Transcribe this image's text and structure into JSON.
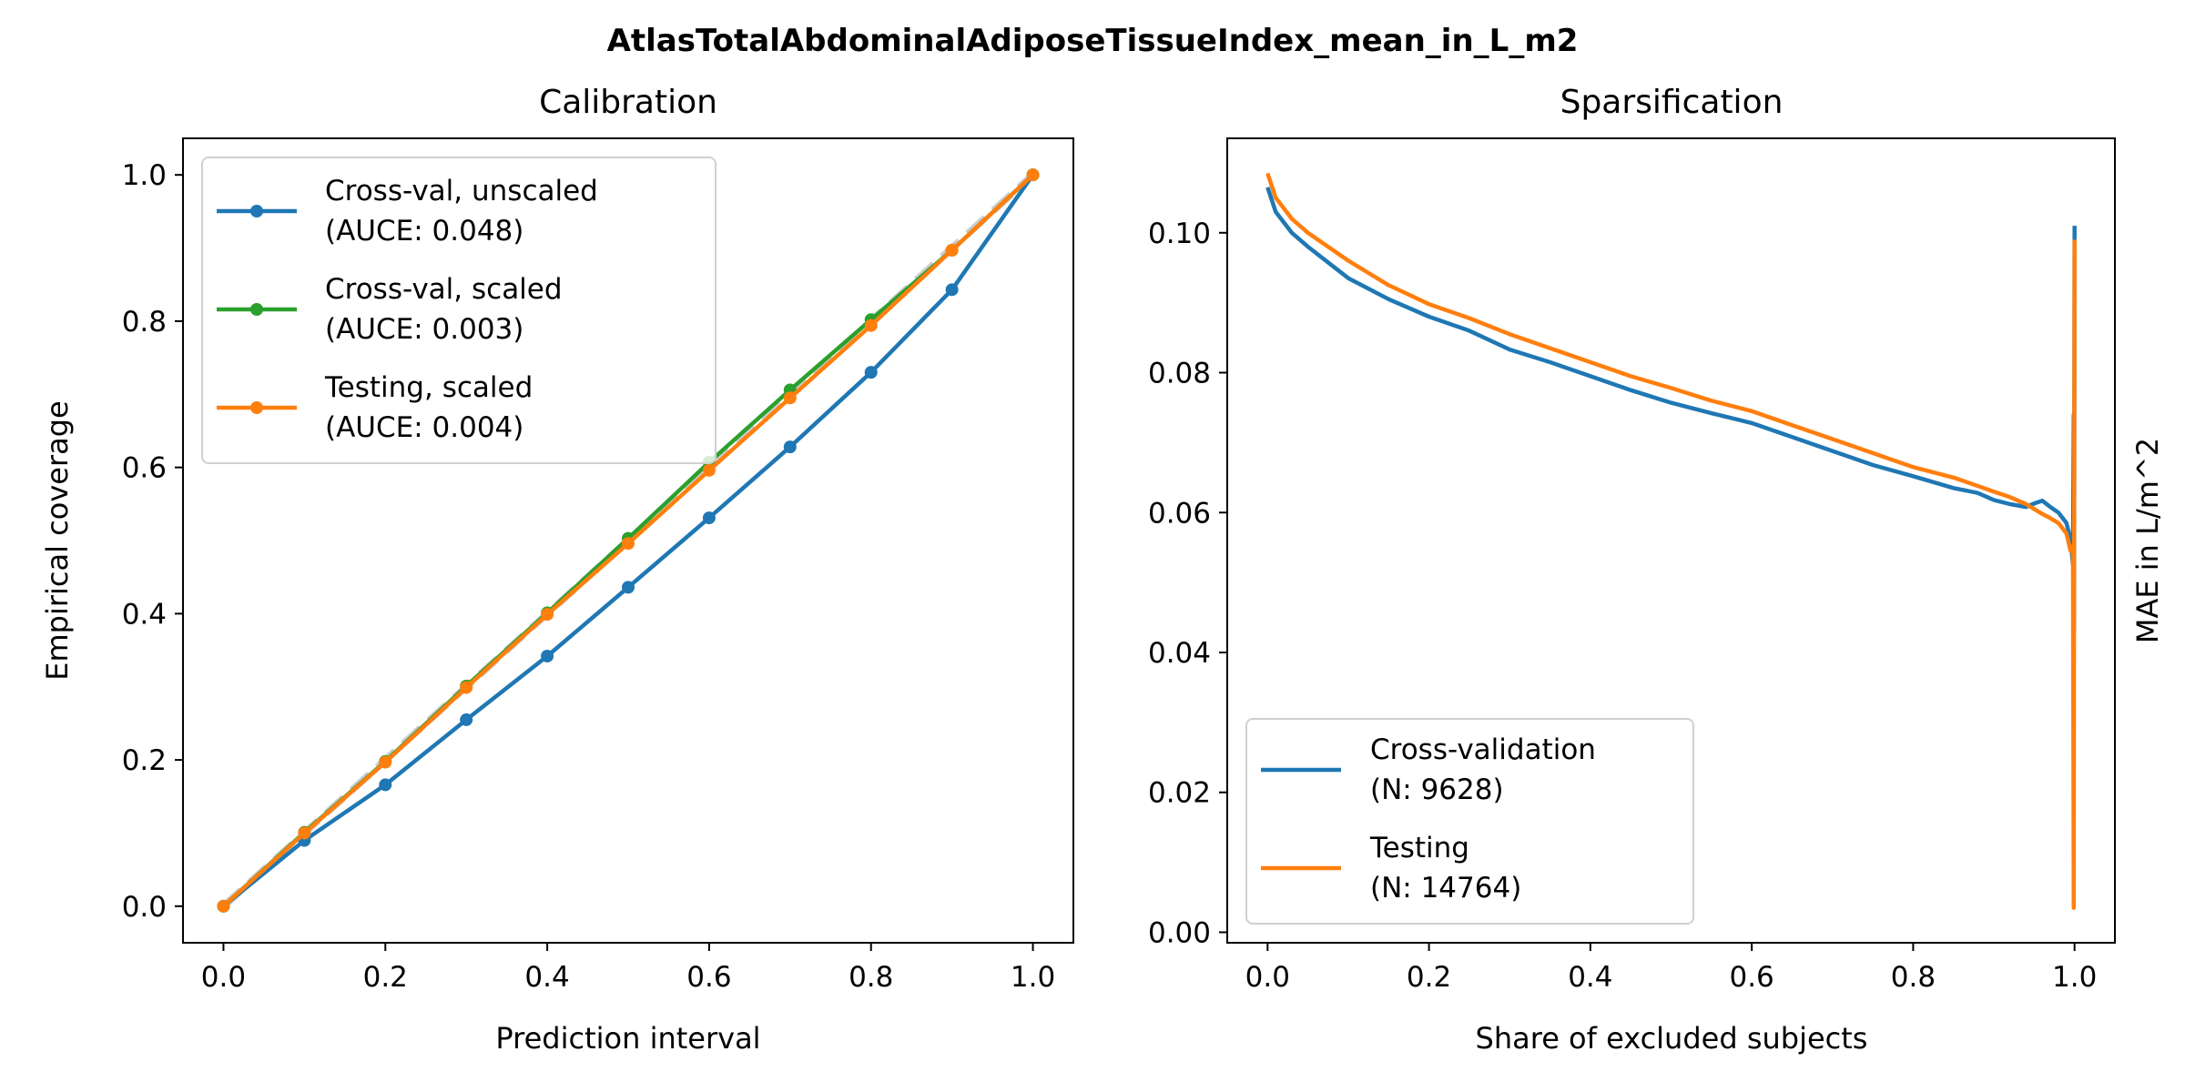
{
  "figure": {
    "suptitle": "AtlasTotalAbdominalAdiposeTissueIndex_mean_in_L_m2"
  },
  "chart_data": [
    {
      "type": "line",
      "title": "Calibration",
      "xlabel": "Prediction interval",
      "ylabel": "Empirical coverage",
      "xlim": [
        -0.05,
        1.05
      ],
      "ylim": [
        -0.05,
        1.05
      ],
      "xticks": [
        "0.0",
        "0.2",
        "0.4",
        "0.6",
        "0.8",
        "1.0"
      ],
      "yticks": [
        "0.0",
        "0.2",
        "0.4",
        "0.6",
        "0.8",
        "1.0"
      ],
      "grid": false,
      "legend_position": "upper-left",
      "x": [
        0.0,
        0.1,
        0.2,
        0.3,
        0.4,
        0.5,
        0.6,
        0.7,
        0.8,
        0.9,
        1.0
      ],
      "reference_line": {
        "style": "dashed",
        "color": "#cccccc",
        "x": [
          0,
          1
        ],
        "y": [
          0,
          1
        ]
      },
      "series": [
        {
          "name": "Cross-val, unscaled",
          "name2": "(AUCE: 0.048)",
          "color": "#1f77b4",
          "values": [
            0.0,
            0.09,
            0.166,
            0.255,
            0.342,
            0.436,
            0.531,
            0.628,
            0.73,
            0.843,
            1.0
          ]
        },
        {
          "name": "Cross-val, scaled",
          "name2": "(AUCE: 0.003)",
          "color": "#2ca02c",
          "values": [
            0.0,
            0.101,
            0.198,
            0.301,
            0.401,
            0.503,
            0.607,
            0.706,
            0.802,
            0.897,
            1.0
          ]
        },
        {
          "name": "Testing, scaled",
          "name2": "(AUCE: 0.004)",
          "color": "#ff7f0e",
          "values": [
            0.0,
            0.1,
            0.197,
            0.299,
            0.399,
            0.496,
            0.596,
            0.695,
            0.794,
            0.897,
            1.0
          ]
        }
      ]
    },
    {
      "type": "line",
      "title": "Sparsification",
      "xlabel": "Share of excluded subjects",
      "ylabel": "MAE in L/m^2",
      "xlim": [
        -0.05,
        1.05
      ],
      "ylim": [
        -0.0015,
        0.1135
      ],
      "xticks": [
        "0.0",
        "0.2",
        "0.4",
        "0.6",
        "0.8",
        "1.0"
      ],
      "yticks": [
        "0.00",
        "0.02",
        "0.04",
        "0.06",
        "0.08",
        "0.10"
      ],
      "grid": false,
      "legend_position": "lower-left",
      "series": [
        {
          "name": "Cross-validation",
          "name2": "(N: 9628)",
          "color": "#1f77b4",
          "x": [
            0.0,
            0.01,
            0.03,
            0.05,
            0.1,
            0.15,
            0.2,
            0.25,
            0.3,
            0.35,
            0.4,
            0.45,
            0.5,
            0.55,
            0.6,
            0.65,
            0.7,
            0.75,
            0.8,
            0.85,
            0.88,
            0.9,
            0.92,
            0.94,
            0.95,
            0.96,
            0.97,
            0.98,
            0.99,
            0.995,
            0.998,
            0.999,
            0.9995,
            1.0
          ],
          "values": [
            0.1065,
            0.103,
            0.1,
            0.098,
            0.0935,
            0.0905,
            0.088,
            0.086,
            0.0833,
            0.0815,
            0.0795,
            0.0775,
            0.0757,
            0.0742,
            0.0728,
            0.0708,
            0.0688,
            0.0668,
            0.0652,
            0.0635,
            0.0628,
            0.0618,
            0.0612,
            0.0608,
            0.0613,
            0.0617,
            0.0608,
            0.06,
            0.0585,
            0.0562,
            0.0525,
            0.074,
            0.043,
            0.101
          ]
        },
        {
          "name": "Testing",
          "name2": "(N: 14764)",
          "color": "#ff7f0e",
          "x": [
            0.0,
            0.01,
            0.03,
            0.05,
            0.1,
            0.15,
            0.2,
            0.25,
            0.3,
            0.35,
            0.4,
            0.45,
            0.5,
            0.55,
            0.6,
            0.65,
            0.7,
            0.75,
            0.8,
            0.85,
            0.88,
            0.9,
            0.92,
            0.94,
            0.95,
            0.96,
            0.97,
            0.98,
            0.99,
            0.995,
            0.998,
            0.999,
            0.9995,
            1.0
          ],
          "values": [
            0.1085,
            0.105,
            0.102,
            0.1,
            0.096,
            0.0925,
            0.0898,
            0.0878,
            0.0855,
            0.0835,
            0.0815,
            0.0795,
            0.0778,
            0.076,
            0.0745,
            0.0725,
            0.0705,
            0.0685,
            0.0665,
            0.065,
            0.0638,
            0.063,
            0.0622,
            0.0612,
            0.0605,
            0.0598,
            0.0592,
            0.0585,
            0.057,
            0.0545,
            0.0552,
            0.0035,
            0.056,
            0.099
          ]
        }
      ]
    }
  ]
}
